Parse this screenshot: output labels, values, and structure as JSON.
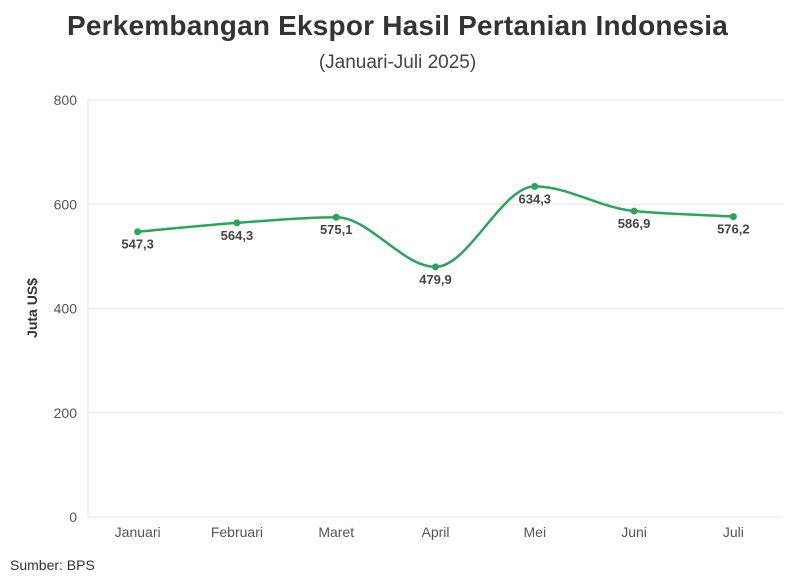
{
  "chart_data": {
    "type": "line",
    "title": "Perkembangan Ekspor Hasil Pertanian Indonesia",
    "subtitle": "(Januari-Juli 2025)",
    "xlabel": "",
    "ylabel": "Juta US$",
    "categories": [
      "Januari",
      "Februari",
      "Maret",
      "April",
      "Mei",
      "Juni",
      "Juli"
    ],
    "series": [
      {
        "values": [
          547.3,
          564.3,
          575.1,
          479.9,
          634.3,
          586.9,
          576.2
        ],
        "labels": [
          "547,3",
          "564,3",
          "575,1",
          "479,9",
          "634,3",
          "586,9",
          "576,2"
        ],
        "color": "#2aa55a"
      }
    ],
    "ylim": [
      0,
      800
    ],
    "yticks": [
      0,
      200,
      400,
      600,
      800
    ],
    "grid": true,
    "smooth": true
  },
  "source": "Sumber: BPS",
  "colors": {
    "line": "#2aa55a",
    "grid": "#e6e6e6",
    "text": "#333333"
  }
}
